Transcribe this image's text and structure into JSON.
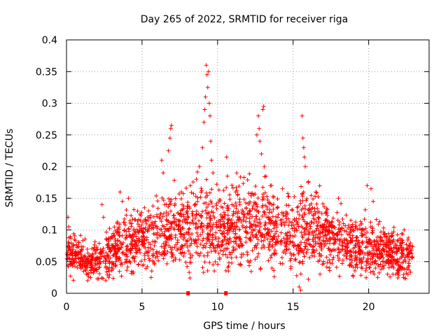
{
  "chart_data": {
    "type": "scatter",
    "title": "Day 265 of 2022, SRMTID for receiver riga",
    "xlabel": "GPS time / hours",
    "ylabel": "SRMTID / TECUs",
    "xlim": [
      0,
      24
    ],
    "ylim": [
      0,
      0.4
    ],
    "x_ticks": [
      0,
      5,
      10,
      15,
      20
    ],
    "x_tick_labels": [
      "0",
      "5",
      "10",
      "15",
      "20"
    ],
    "y_ticks": [
      0,
      0.05,
      0.1,
      0.15,
      0.2,
      0.25,
      0.3,
      0.35,
      0.4
    ],
    "y_tick_labels": [
      "0",
      "0.05",
      "0.1",
      "0.15",
      "0.2",
      "0.25",
      "0.3",
      "0.35",
      "0.4"
    ],
    "grid": true,
    "marker": "+",
    "color": "#ff0000",
    "series": [
      {
        "name": "SRMTID",
        "profile": [
          [
            0.0,
            0.065,
            0.012
          ],
          [
            0.5,
            0.06,
            0.012
          ],
          [
            1.0,
            0.055,
            0.01
          ],
          [
            1.5,
            0.05,
            0.01
          ],
          [
            2.0,
            0.05,
            0.012
          ],
          [
            2.5,
            0.06,
            0.014
          ],
          [
            3.0,
            0.068,
            0.015
          ],
          [
            3.5,
            0.075,
            0.016
          ],
          [
            4.0,
            0.08,
            0.017
          ],
          [
            4.5,
            0.082,
            0.017
          ],
          [
            5.0,
            0.085,
            0.018
          ],
          [
            5.5,
            0.088,
            0.018
          ],
          [
            6.0,
            0.095,
            0.02
          ],
          [
            6.5,
            0.105,
            0.022
          ],
          [
            7.0,
            0.105,
            0.022
          ],
          [
            7.5,
            0.1,
            0.02
          ],
          [
            8.0,
            0.105,
            0.022
          ],
          [
            8.5,
            0.11,
            0.025
          ],
          [
            9.0,
            0.11,
            0.026
          ],
          [
            9.5,
            0.105,
            0.025
          ],
          [
            10.0,
            0.1,
            0.022
          ],
          [
            10.5,
            0.1,
            0.022
          ],
          [
            11.0,
            0.105,
            0.024
          ],
          [
            11.5,
            0.11,
            0.025
          ],
          [
            12.0,
            0.11,
            0.025
          ],
          [
            12.5,
            0.115,
            0.026
          ],
          [
            13.0,
            0.11,
            0.024
          ],
          [
            13.5,
            0.105,
            0.024
          ],
          [
            14.0,
            0.1,
            0.022
          ],
          [
            14.5,
            0.095,
            0.02
          ],
          [
            15.0,
            0.09,
            0.02
          ],
          [
            15.5,
            0.1,
            0.024
          ],
          [
            16.0,
            0.11,
            0.025
          ],
          [
            16.5,
            0.1,
            0.022
          ],
          [
            17.0,
            0.095,
            0.02
          ],
          [
            17.5,
            0.09,
            0.02
          ],
          [
            18.0,
            0.085,
            0.018
          ],
          [
            18.5,
            0.08,
            0.018
          ],
          [
            19.0,
            0.075,
            0.016
          ],
          [
            19.5,
            0.075,
            0.016
          ],
          [
            20.0,
            0.075,
            0.016
          ],
          [
            20.5,
            0.07,
            0.015
          ],
          [
            21.0,
            0.068,
            0.015
          ],
          [
            21.5,
            0.065,
            0.014
          ],
          [
            22.0,
            0.06,
            0.013
          ],
          [
            22.5,
            0.06,
            0.013
          ],
          [
            22.9,
            0.058,
            0.012
          ]
        ],
        "spikes": [
          [
            0.1,
            0.12
          ],
          [
            0.15,
            0.105
          ],
          [
            2.35,
            0.14
          ],
          [
            2.45,
            0.12
          ],
          [
            3.55,
            0.16
          ],
          [
            3.7,
            0.145
          ],
          [
            4.1,
            0.15
          ],
          [
            6.3,
            0.21
          ],
          [
            6.4,
            0.19
          ],
          [
            6.9,
            0.26
          ],
          [
            6.95,
            0.265
          ],
          [
            6.85,
            0.245
          ],
          [
            6.75,
            0.225
          ],
          [
            7.6,
            0.16
          ],
          [
            8.2,
            0.17
          ],
          [
            8.6,
            0.18
          ],
          [
            8.8,
            0.2
          ],
          [
            9.0,
            0.23
          ],
          [
            9.1,
            0.27
          ],
          [
            9.15,
            0.29
          ],
          [
            9.2,
            0.31
          ],
          [
            9.25,
            0.36
          ],
          [
            9.3,
            0.345
          ],
          [
            9.35,
            0.325
          ],
          [
            9.4,
            0.35
          ],
          [
            9.45,
            0.3
          ],
          [
            9.5,
            0.28
          ],
          [
            9.55,
            0.24
          ],
          [
            9.6,
            0.21
          ],
          [
            9.7,
            0.19
          ],
          [
            10.6,
            0.215
          ],
          [
            10.65,
            0.185
          ],
          [
            11.2,
            0.16
          ],
          [
            12.6,
            0.25
          ],
          [
            12.7,
            0.28
          ],
          [
            12.75,
            0.26
          ],
          [
            12.8,
            0.24
          ],
          [
            12.9,
            0.22
          ],
          [
            13.0,
            0.29
          ],
          [
            13.05,
            0.295
          ],
          [
            13.1,
            0.2
          ],
          [
            13.2,
            0.185
          ],
          [
            13.5,
            0.17
          ],
          [
            14.3,
            0.165
          ],
          [
            15.6,
            0.28
          ],
          [
            15.65,
            0.245
          ],
          [
            15.7,
            0.23
          ],
          [
            15.75,
            0.215
          ],
          [
            15.8,
            0.2
          ],
          [
            16.0,
            0.175
          ],
          [
            16.5,
            0.16
          ],
          [
            18.0,
            0.15
          ],
          [
            19.9,
            0.17
          ],
          [
            20.15,
            0.165
          ],
          [
            20.3,
            0.145
          ]
        ],
        "lows": [
          [
            1.4,
            0.02
          ],
          [
            1.6,
            0.025
          ],
          [
            2.6,
            0.02
          ],
          [
            2.8,
            0.025
          ],
          [
            5.6,
            0.025
          ],
          [
            15.4,
            0.01
          ],
          [
            15.5,
            0.005
          ],
          [
            21.8,
            0.03
          ],
          [
            22.3,
            0.025
          ],
          [
            22.6,
            0.03
          ],
          [
            20.6,
            0.025
          ]
        ]
      }
    ]
  }
}
